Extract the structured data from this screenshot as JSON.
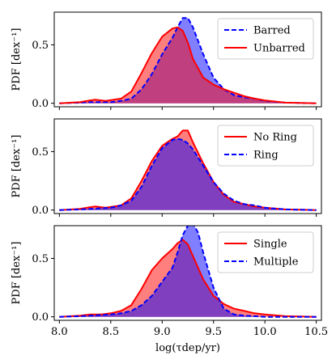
{
  "chart_data": [
    {
      "type": "area",
      "xlim": [
        7.95,
        10.55
      ],
      "ylim": [
        -0.03,
        0.78
      ],
      "xticks": [
        8.0,
        8.5,
        9.0,
        9.5,
        10.0,
        10.5
      ],
      "yticks": [
        0.0,
        0.5
      ],
      "ytick_labels": [
        "0.0",
        "0.5"
      ],
      "ylabel": "PDF [dex⁻¹]",
      "show_xtick_labels": false,
      "legend_position": "top-right",
      "series": [
        {
          "name": "Barred",
          "color": "#0000ff",
          "linestyle": "dashed",
          "x": [
            8.0,
            8.2,
            8.3,
            8.4,
            8.5,
            8.6,
            8.7,
            8.8,
            8.9,
            9.0,
            9.1,
            9.15,
            9.2,
            9.25,
            9.3,
            9.4,
            9.5,
            9.6,
            9.7,
            9.8,
            9.9,
            10.0,
            10.2,
            10.5
          ],
          "y": [
            0.0,
            0.005,
            0.01,
            0.01,
            0.01,
            0.02,
            0.04,
            0.12,
            0.25,
            0.42,
            0.56,
            0.65,
            0.73,
            0.73,
            0.65,
            0.42,
            0.22,
            0.12,
            0.07,
            0.05,
            0.04,
            0.02,
            0.005,
            0.0
          ]
        },
        {
          "name": "Unbarred",
          "color": "#ff0000",
          "linestyle": "solid",
          "x": [
            8.0,
            8.2,
            8.3,
            8.35,
            8.45,
            8.6,
            8.7,
            8.8,
            8.9,
            9.0,
            9.1,
            9.15,
            9.2,
            9.25,
            9.3,
            9.4,
            9.5,
            9.6,
            9.7,
            9.8,
            9.9,
            10.0,
            10.2,
            10.5
          ],
          "y": [
            0.0,
            0.01,
            0.025,
            0.03,
            0.02,
            0.04,
            0.1,
            0.26,
            0.43,
            0.57,
            0.64,
            0.65,
            0.62,
            0.52,
            0.38,
            0.22,
            0.16,
            0.12,
            0.09,
            0.06,
            0.04,
            0.025,
            0.005,
            0.0
          ]
        }
      ]
    },
    {
      "type": "area",
      "xlim": [
        7.95,
        10.55
      ],
      "ylim": [
        -0.03,
        0.78
      ],
      "xticks": [
        8.0,
        8.5,
        9.0,
        9.5,
        10.0,
        10.5
      ],
      "yticks": [
        0.0,
        0.5
      ],
      "ytick_labels": [
        "0.0",
        "0.5"
      ],
      "ylabel": "PDF [dex⁻¹]",
      "show_xtick_labels": false,
      "legend_position": "top-right",
      "series": [
        {
          "name": "No Ring",
          "color": "#ff0000",
          "linestyle": "solid",
          "x": [
            8.0,
            8.2,
            8.3,
            8.35,
            8.45,
            8.6,
            8.7,
            8.8,
            8.9,
            9.0,
            9.1,
            9.15,
            9.2,
            9.25,
            9.3,
            9.4,
            9.5,
            9.6,
            9.7,
            9.8,
            9.9,
            10.0,
            10.2,
            10.5
          ],
          "y": [
            0.0,
            0.01,
            0.025,
            0.03,
            0.02,
            0.04,
            0.1,
            0.25,
            0.42,
            0.55,
            0.61,
            0.63,
            0.68,
            0.68,
            0.58,
            0.4,
            0.24,
            0.13,
            0.07,
            0.05,
            0.03,
            0.02,
            0.005,
            0.0
          ]
        },
        {
          "name": "Ring",
          "color": "#0000ff",
          "linestyle": "dashed",
          "x": [
            8.0,
            8.2,
            8.3,
            8.4,
            8.5,
            8.6,
            8.7,
            8.8,
            8.9,
            9.0,
            9.1,
            9.15,
            9.2,
            9.25,
            9.3,
            9.4,
            9.5,
            9.6,
            9.7,
            9.8,
            9.9,
            10.0,
            10.2,
            10.5
          ],
          "y": [
            0.0,
            0.005,
            0.01,
            0.015,
            0.02,
            0.04,
            0.08,
            0.2,
            0.38,
            0.53,
            0.6,
            0.61,
            0.6,
            0.57,
            0.52,
            0.38,
            0.24,
            0.14,
            0.08,
            0.05,
            0.04,
            0.02,
            0.005,
            0.0
          ]
        }
      ]
    },
    {
      "type": "area",
      "xlim": [
        7.95,
        10.55
      ],
      "ylim": [
        -0.03,
        0.78
      ],
      "xticks": [
        8.0,
        8.5,
        9.0,
        9.5,
        10.0,
        10.5
      ],
      "xtick_labels": [
        "8.0",
        "8.5",
        "9.0",
        "9.5",
        "10.0",
        "10.5"
      ],
      "yticks": [
        0.0,
        0.5
      ],
      "ytick_labels": [
        "0.0",
        "0.5"
      ],
      "ylabel": "PDF [dex⁻¹]",
      "xlabel": "log(τdep/yr)",
      "show_xtick_labels": true,
      "legend_position": "top-right",
      "series": [
        {
          "name": "Single",
          "color": "#ff0000",
          "linestyle": "solid",
          "x": [
            8.0,
            8.2,
            8.3,
            8.4,
            8.5,
            8.6,
            8.7,
            8.8,
            8.9,
            9.0,
            9.1,
            9.15,
            9.2,
            9.25,
            9.3,
            9.4,
            9.5,
            9.6,
            9.7,
            9.8,
            9.9,
            10.0,
            10.2,
            10.5
          ],
          "y": [
            0.0,
            0.01,
            0.02,
            0.02,
            0.03,
            0.05,
            0.1,
            0.24,
            0.4,
            0.5,
            0.58,
            0.63,
            0.66,
            0.62,
            0.52,
            0.32,
            0.18,
            0.11,
            0.07,
            0.05,
            0.03,
            0.02,
            0.005,
            0.0
          ]
        },
        {
          "name": "Multiple",
          "color": "#0000ff",
          "linestyle": "dashed",
          "x": [
            8.0,
            8.2,
            8.3,
            8.4,
            8.5,
            8.6,
            8.7,
            8.8,
            8.9,
            9.0,
            9.1,
            9.15,
            9.2,
            9.25,
            9.3,
            9.35,
            9.4,
            9.5,
            9.6,
            9.7,
            9.8,
            9.9,
            10.0,
            10.2,
            10.5
          ],
          "y": [
            0.0,
            0.005,
            0.01,
            0.015,
            0.02,
            0.03,
            0.05,
            0.1,
            0.18,
            0.3,
            0.42,
            0.55,
            0.7,
            0.78,
            0.8,
            0.72,
            0.55,
            0.25,
            0.07,
            0.02,
            0.01,
            0.005,
            0.0,
            0.0,
            0.0
          ]
        }
      ]
    }
  ]
}
